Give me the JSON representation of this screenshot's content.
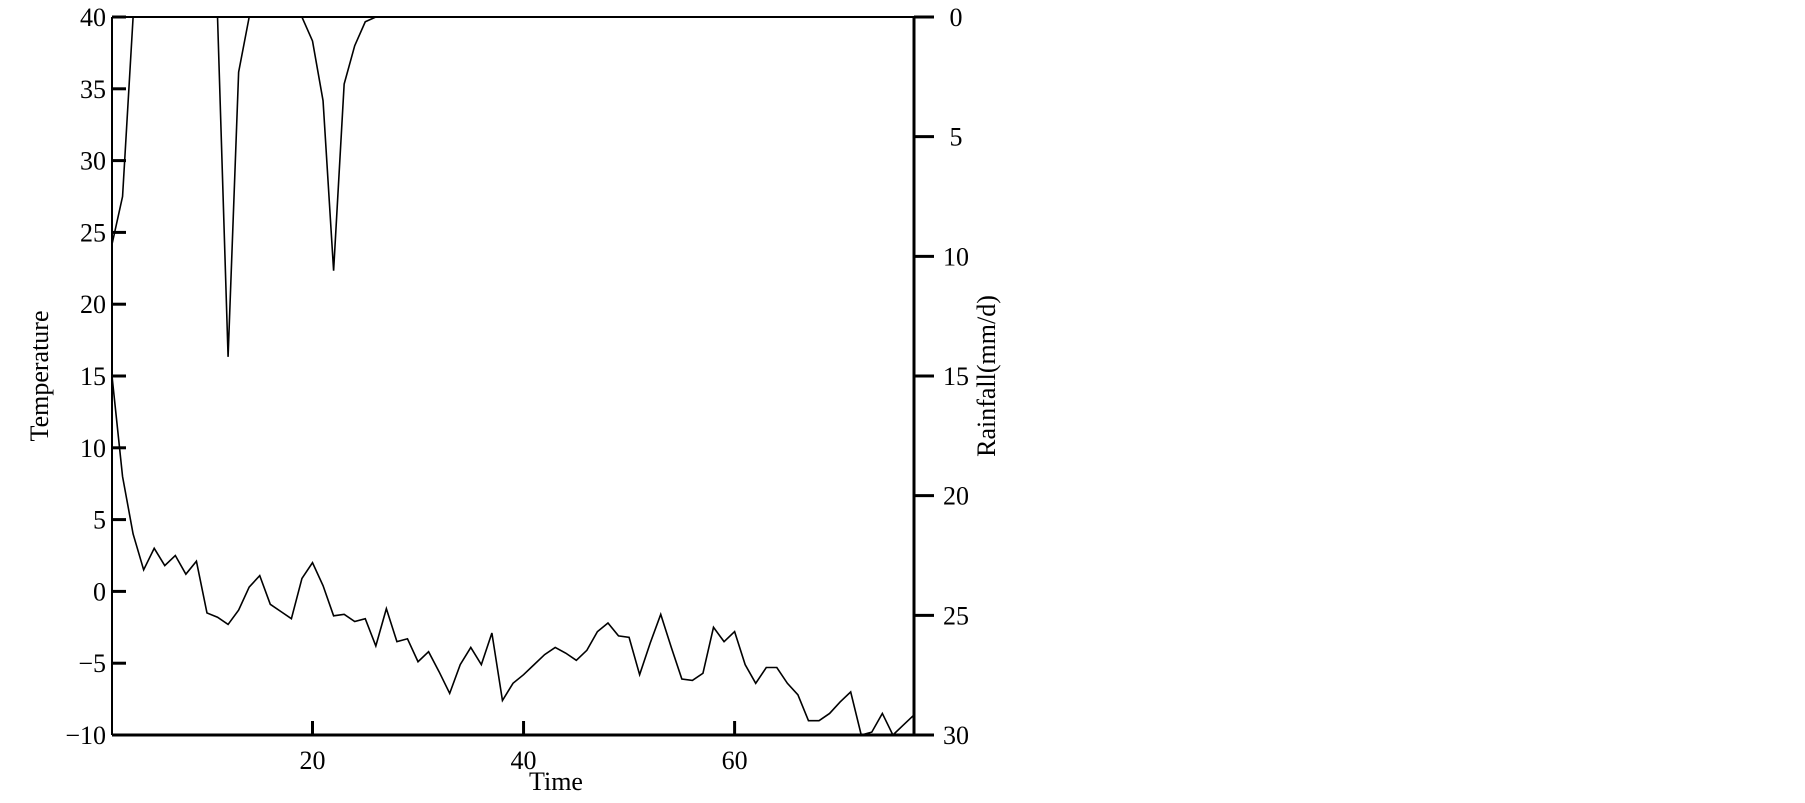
{
  "chart_data": {
    "type": "line",
    "x_label": "Time",
    "y_label": "Temperature",
    "y2_label": "Rainfall(mm/d)",
    "x": [
      1,
      2,
      3,
      4,
      5,
      6,
      7,
      8,
      9,
      10,
      11,
      12,
      13,
      14,
      15,
      16,
      17,
      18,
      19,
      20,
      21,
      22,
      23,
      24,
      25,
      26,
      27,
      28,
      29,
      30,
      31,
      32,
      33,
      34,
      35,
      36,
      37,
      38,
      39,
      40,
      41,
      42,
      43,
      44,
      45,
      46,
      47,
      48,
      49,
      50,
      51,
      52,
      53,
      54,
      55,
      56,
      57,
      58,
      59,
      60,
      61,
      62,
      63,
      64,
      65,
      66,
      67,
      68,
      69,
      70,
      71,
      72,
      73,
      74,
      75,
      76,
      77
    ],
    "series": [
      {
        "name": "Temperature",
        "color": "#000000",
        "values": [
          15,
          8,
          4,
          1.5,
          3,
          1.8,
          2.5,
          1.2,
          2.1,
          -1.5,
          -1.8,
          -2.3,
          -1.3,
          0.3,
          1.1,
          -0.9,
          -1.4,
          -1.9,
          0.9,
          2,
          0.4,
          -1.7,
          -1.6,
          -2.1,
          -1.9,
          -3.8,
          -1.2,
          -3.5,
          -3.3,
          -4.9,
          -4.2,
          -5.6,
          -7.1,
          -5.1,
          -3.9,
          -5.1,
          -2.9,
          -7.6,
          -6.4,
          -5.8,
          -5.1,
          -4.4,
          -3.9,
          -4.3,
          -4.8,
          -4.1,
          -2.8,
          -2.2,
          -3.1,
          -3.2,
          -5.8,
          -3.6,
          -1.6,
          -3.9,
          -6.1,
          -6.2,
          -5.7,
          -2.5,
          -3.5,
          -2.8,
          -5.1,
          -6.4,
          -5.3,
          -5.3,
          -6.4,
          -7.2,
          -9,
          -9,
          -8.5,
          -7.7,
          -7,
          -10,
          -9.8,
          -8.5,
          -10,
          -9.3,
          -8.6
        ]
      },
      {
        "name": "Rainfall",
        "color": "#000000",
        "axis": "y2",
        "values": [
          9.5,
          7.5,
          0,
          0,
          0,
          0,
          0,
          0,
          0,
          0,
          0,
          14.2,
          2.3,
          0,
          0,
          0,
          0,
          0,
          0,
          1,
          3.5,
          10.6,
          2.8,
          1.2,
          0.2,
          0,
          0,
          0,
          0,
          0,
          0,
          0,
          0,
          0,
          0,
          0,
          0,
          0,
          0,
          0,
          0,
          0,
          0,
          0,
          0,
          0,
          0,
          0,
          0,
          0,
          0,
          0,
          0,
          0,
          0,
          0,
          0,
          0,
          0,
          0,
          0,
          0,
          0,
          0,
          0,
          0,
          0,
          0,
          0,
          0,
          0,
          0,
          0,
          0,
          0,
          0,
          0
        ]
      }
    ],
    "xlim": [
      1,
      77
    ],
    "xticks": [
      20,
      40,
      60
    ],
    "ylim": [
      -10,
      40
    ],
    "yticks": [
      {
        "value": -10,
        "label": "−10"
      },
      {
        "value": -5,
        "label": "−5"
      },
      0,
      5,
      10,
      15,
      20,
      25,
      30,
      35,
      40
    ],
    "y2lim": [
      30,
      0
    ],
    "y2ticks": [
      0,
      5,
      10,
      15,
      20,
      25,
      30
    ]
  }
}
